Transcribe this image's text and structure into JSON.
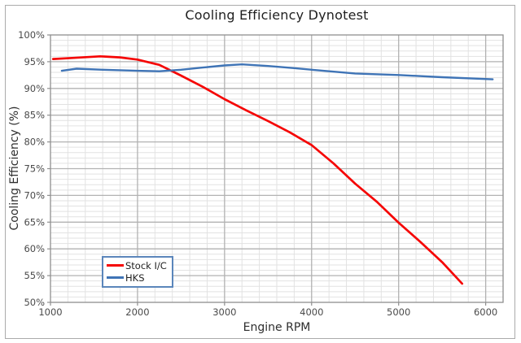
{
  "window": {
    "description": "Line chart screenshot, chart widget with thin gray frame on white background"
  },
  "colors": {
    "background": "#ffffff",
    "frame_border": "#ababab",
    "plot_border": "#8f8f8f",
    "major_grid": "#b2b2b2",
    "minor_grid": "#e2e2e2",
    "tick_mark": "#8f8f8f",
    "title_text": "#1f1f1f",
    "axis_title_text": "#2e2e2e",
    "tick_label_text": "#4a4a4a",
    "legend_border": "#5b86bb",
    "legend_text": "#1f1f1f",
    "stock_red": "#f50504",
    "hks_blue": "#3f74b6"
  },
  "chart_data": {
    "type": "line",
    "title": "Cooling Efficiency Dynotest",
    "xlabel": "Engine RPM",
    "ylabel": "Cooling Efficiency (%)",
    "xlim": [
      1000,
      6200
    ],
    "ylim": [
      50,
      100
    ],
    "grid": "major and minor, both axes",
    "x_minor_step": 200,
    "y_minor_step": 1,
    "x_major_ticks": [
      1000,
      2000,
      3000,
      4000,
      5000,
      6000
    ],
    "x_tick_labels": [
      "1000",
      "2000",
      "3000",
      "4000",
      "5000",
      "6000"
    ],
    "y_major_ticks": [
      50,
      55,
      60,
      65,
      70,
      75,
      80,
      85,
      90,
      95,
      100
    ],
    "y_tick_labels": [
      "50%",
      "55%",
      "60%",
      "65%",
      "70%",
      "75%",
      "80%",
      "85%",
      "90%",
      "95%",
      "100%"
    ],
    "legend_position": "inside lower-left",
    "series": [
      {
        "name": "Stock I/C",
        "color": "#f50504",
        "stroke_width": 2.7,
        "points": [
          [
            1030,
            95.5
          ],
          [
            1250,
            95.7
          ],
          [
            1570,
            96.0
          ],
          [
            1800,
            95.8
          ],
          [
            2000,
            95.4
          ],
          [
            2250,
            94.4
          ],
          [
            2500,
            92.4
          ],
          [
            2750,
            90.3
          ],
          [
            3000,
            88.0
          ],
          [
            3250,
            85.9
          ],
          [
            3500,
            83.9
          ],
          [
            3750,
            81.8
          ],
          [
            4000,
            79.4
          ],
          [
            4250,
            76.0
          ],
          [
            4500,
            72.2
          ],
          [
            4750,
            68.8
          ],
          [
            5000,
            64.9
          ],
          [
            5250,
            61.3
          ],
          [
            5500,
            57.5
          ],
          [
            5730,
            53.5
          ]
        ]
      },
      {
        "name": "HKS",
        "color": "#3f74b6",
        "stroke_width": 2.4,
        "points": [
          [
            1130,
            93.3
          ],
          [
            1300,
            93.7
          ],
          [
            1600,
            93.5
          ],
          [
            2000,
            93.3
          ],
          [
            2250,
            93.2
          ],
          [
            2500,
            93.5
          ],
          [
            2750,
            93.9
          ],
          [
            3000,
            94.3
          ],
          [
            3200,
            94.5
          ],
          [
            3500,
            94.2
          ],
          [
            3800,
            93.8
          ],
          [
            4000,
            93.5
          ],
          [
            4500,
            92.8
          ],
          [
            5000,
            92.5
          ],
          [
            5500,
            92.1
          ],
          [
            6080,
            91.7
          ]
        ]
      }
    ]
  }
}
